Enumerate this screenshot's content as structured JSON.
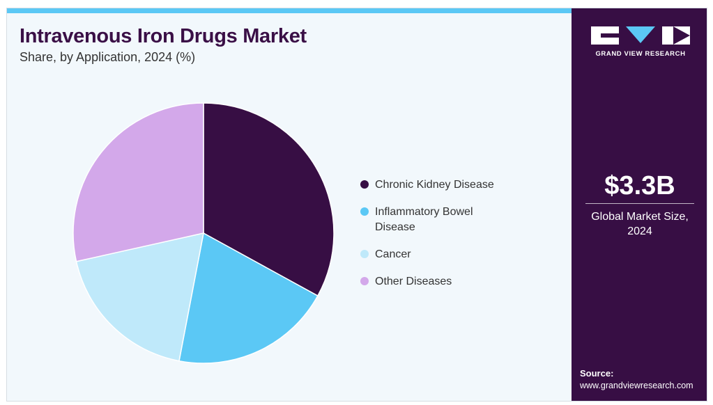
{
  "header": {
    "title": "Intravenous Iron Drugs Market",
    "subtitle": "Share, by Application, 2024 (%)"
  },
  "colors": {
    "accent_bar": "#5bc8f5",
    "title": "#3a0f46",
    "sidebar": "#370e44",
    "background": "#f2f8fc"
  },
  "chart_data": {
    "type": "pie",
    "title": "Intravenous Iron Drugs Market",
    "subtitle": "Share, by Application, 2024 (%)",
    "legend_position": "right",
    "start_angle_deg": 0,
    "direction": "clockwise",
    "series": [
      {
        "name": "Chronic Kidney Disease",
        "value": 33,
        "color": "#370e44"
      },
      {
        "name": "Inflammatory Bowel Disease",
        "value": 20,
        "color": "#5bc8f5"
      },
      {
        "name": "Cancer",
        "value": 18.5,
        "color": "#bfe9fa"
      },
      {
        "name": "Other Diseases",
        "value": 28.5,
        "color": "#d3a8ea"
      }
    ]
  },
  "sidebar": {
    "logo_alt": "GRAND VIEW RESEARCH",
    "logo_text": "GRAND VIEW RESEARCH",
    "market_size_value": "$3.3B",
    "market_size_label": "Global Market Size, 2024",
    "source_label": "Source:",
    "source_url": "www.grandviewresearch.com"
  }
}
